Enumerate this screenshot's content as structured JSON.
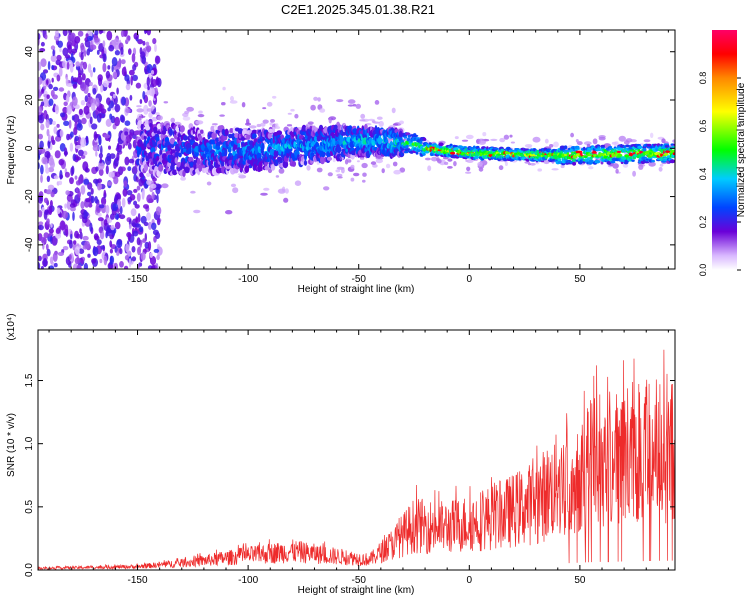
{
  "page_title": "C2E1.2025.345.01.38.R21",
  "chart_data": [
    {
      "type": "heatmap",
      "title": "C2E1.2025.345.01.38.R21",
      "xlabel": "Height of straight line (km)",
      "ylabel": "Frequency (Hz)",
      "xlim": [
        -195,
        93
      ],
      "ylim": [
        -50,
        49
      ],
      "xticks": [
        -150,
        -100,
        -50,
        0,
        50
      ],
      "yticks": [
        -40,
        -20,
        0,
        20,
        40
      ],
      "colorbar": {
        "label": "Normalized spectral amplitude",
        "range": [
          0,
          1
        ],
        "ticks": [
          "0.0",
          "0.2",
          "0.4",
          "0.6",
          "0.8"
        ],
        "colormap": [
          "#ffffff",
          "#6a00d8",
          "#0044ff",
          "#00ffff",
          "#00ff00",
          "#ffff00",
          "#ff8800",
          "#ff0000",
          "#ff0066"
        ]
      },
      "ridge_center_hz": [
        {
          "x": -160,
          "y": 0
        },
        {
          "x": -100,
          "y": -1
        },
        {
          "x": -50,
          "y": 3
        },
        {
          "x": -25,
          "y": 2
        },
        {
          "x": -20,
          "y": 0
        },
        {
          "x": 0,
          "y": -2
        },
        {
          "x": 40,
          "y": -3
        },
        {
          "x": 93,
          "y": -2
        }
      ],
      "grid": false
    },
    {
      "type": "line",
      "xlabel": "Height of straight line (km)",
      "ylabel": "SNR (10 * v/v)",
      "y_multiplier": "(x10⁴)",
      "xlim": [
        -195,
        93
      ],
      "ylim": [
        0,
        1.9
      ],
      "xticks": [
        -150,
        -100,
        -50,
        0,
        50
      ],
      "yticks": [
        "0.0",
        "0.5",
        "1.0",
        "1.5"
      ],
      "color": "#ee2b2b",
      "envelope": [
        {
          "x": -195,
          "y": 0.02
        },
        {
          "x": -150,
          "y": 0.04
        },
        {
          "x": -130,
          "y": 0.08
        },
        {
          "x": -100,
          "y": 0.17
        },
        {
          "x": -80,
          "y": 0.22
        },
        {
          "x": -60,
          "y": 0.16
        },
        {
          "x": -45,
          "y": 0.12
        },
        {
          "x": -35,
          "y": 0.3
        },
        {
          "x": -25,
          "y": 0.52
        },
        {
          "x": -10,
          "y": 0.5
        },
        {
          "x": 0,
          "y": 0.55
        },
        {
          "x": 15,
          "y": 0.65
        },
        {
          "x": 30,
          "y": 0.8
        },
        {
          "x": 40,
          "y": 1.0
        },
        {
          "x": 55,
          "y": 1.25
        },
        {
          "x": 70,
          "y": 1.35
        },
        {
          "x": 93,
          "y": 1.5
        }
      ],
      "grid": false
    }
  ]
}
